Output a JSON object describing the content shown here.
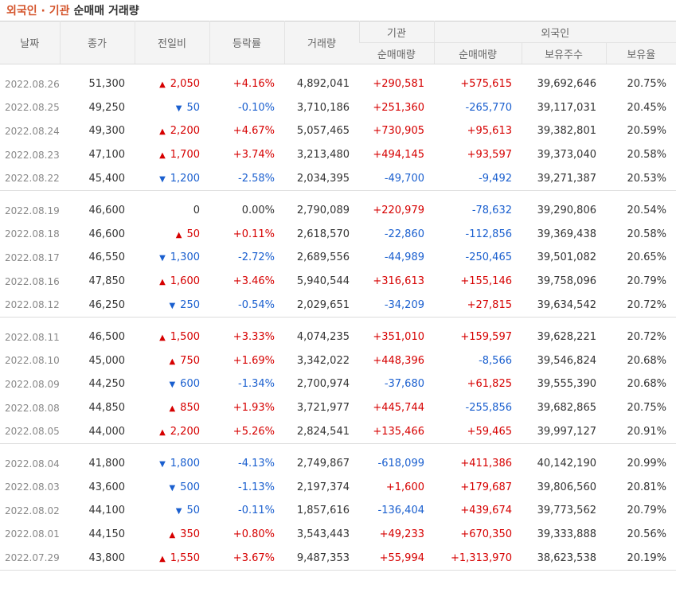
{
  "header": {
    "title_accent": "외국인 · 기관",
    "title_rest": "순매매 거래량"
  },
  "columns": {
    "date": "날짜",
    "close": "종가",
    "change": "전일비",
    "rate": "등락률",
    "volume": "거래량",
    "inst_group": "기관",
    "inst_net": "순매매량",
    "foreign_group": "외국인",
    "foreign_net": "순매매량",
    "foreign_holding": "보유주수",
    "foreign_ratio": "보유율"
  },
  "colors": {
    "up": "#d60000",
    "down": "#1a5fcf",
    "accent": "#d4532a"
  },
  "groups": [
    [
      {
        "date": "2022.08.26",
        "close": "51,300",
        "dir": "up",
        "change": "2,050",
        "rate": "+4.16%",
        "volume": "4,892,041",
        "inst": "+290,581",
        "foreign": "+575,615",
        "holding": "39,692,646",
        "ratio": "20.75%"
      },
      {
        "date": "2022.08.25",
        "close": "49,250",
        "dir": "down",
        "change": "50",
        "rate": "-0.10%",
        "volume": "3,710,186",
        "inst": "+251,360",
        "foreign": "-265,770",
        "holding": "39,117,031",
        "ratio": "20.45%"
      },
      {
        "date": "2022.08.24",
        "close": "49,300",
        "dir": "up",
        "change": "2,200",
        "rate": "+4.67%",
        "volume": "5,057,465",
        "inst": "+730,905",
        "foreign": "+95,613",
        "holding": "39,382,801",
        "ratio": "20.59%"
      },
      {
        "date": "2022.08.23",
        "close": "47,100",
        "dir": "up",
        "change": "1,700",
        "rate": "+3.74%",
        "volume": "3,213,480",
        "inst": "+494,145",
        "foreign": "+93,597",
        "holding": "39,373,040",
        "ratio": "20.58%"
      },
      {
        "date": "2022.08.22",
        "close": "45,400",
        "dir": "down",
        "change": "1,200",
        "rate": "-2.58%",
        "volume": "2,034,395",
        "inst": "-49,700",
        "foreign": "-9,492",
        "holding": "39,271,387",
        "ratio": "20.53%"
      }
    ],
    [
      {
        "date": "2022.08.19",
        "close": "46,600",
        "dir": "flat",
        "change": "0",
        "rate": "0.00%",
        "volume": "2,790,089",
        "inst": "+220,979",
        "foreign": "-78,632",
        "holding": "39,290,806",
        "ratio": "20.54%"
      },
      {
        "date": "2022.08.18",
        "close": "46,600",
        "dir": "up",
        "change": "50",
        "rate": "+0.11%",
        "volume": "2,618,570",
        "inst": "-22,860",
        "foreign": "-112,856",
        "holding": "39,369,438",
        "ratio": "20.58%"
      },
      {
        "date": "2022.08.17",
        "close": "46,550",
        "dir": "down",
        "change": "1,300",
        "rate": "-2.72%",
        "volume": "2,689,556",
        "inst": "-44,989",
        "foreign": "-250,465",
        "holding": "39,501,082",
        "ratio": "20.65%"
      },
      {
        "date": "2022.08.16",
        "close": "47,850",
        "dir": "up",
        "change": "1,600",
        "rate": "+3.46%",
        "volume": "5,940,544",
        "inst": "+316,613",
        "foreign": "+155,146",
        "holding": "39,758,096",
        "ratio": "20.79%"
      },
      {
        "date": "2022.08.12",
        "close": "46,250",
        "dir": "down",
        "change": "250",
        "rate": "-0.54%",
        "volume": "2,029,651",
        "inst": "-34,209",
        "foreign": "+27,815",
        "holding": "39,634,542",
        "ratio": "20.72%"
      }
    ],
    [
      {
        "date": "2022.08.11",
        "close": "46,500",
        "dir": "up",
        "change": "1,500",
        "rate": "+3.33%",
        "volume": "4,074,235",
        "inst": "+351,010",
        "foreign": "+159,597",
        "holding": "39,628,221",
        "ratio": "20.72%"
      },
      {
        "date": "2022.08.10",
        "close": "45,000",
        "dir": "up",
        "change": "750",
        "rate": "+1.69%",
        "volume": "3,342,022",
        "inst": "+448,396",
        "foreign": "-8,566",
        "holding": "39,546,824",
        "ratio": "20.68%"
      },
      {
        "date": "2022.08.09",
        "close": "44,250",
        "dir": "down",
        "change": "600",
        "rate": "-1.34%",
        "volume": "2,700,974",
        "inst": "-37,680",
        "foreign": "+61,825",
        "holding": "39,555,390",
        "ratio": "20.68%"
      },
      {
        "date": "2022.08.08",
        "close": "44,850",
        "dir": "up",
        "change": "850",
        "rate": "+1.93%",
        "volume": "3,721,977",
        "inst": "+445,744",
        "foreign": "-255,856",
        "holding": "39,682,865",
        "ratio": "20.75%"
      },
      {
        "date": "2022.08.05",
        "close": "44,000",
        "dir": "up",
        "change": "2,200",
        "rate": "+5.26%",
        "volume": "2,824,541",
        "inst": "+135,466",
        "foreign": "+59,465",
        "holding": "39,997,127",
        "ratio": "20.91%"
      }
    ],
    [
      {
        "date": "2022.08.04",
        "close": "41,800",
        "dir": "down",
        "change": "1,800",
        "rate": "-4.13%",
        "volume": "2,749,867",
        "inst": "-618,099",
        "foreign": "+411,386",
        "holding": "40,142,190",
        "ratio": "20.99%"
      },
      {
        "date": "2022.08.03",
        "close": "43,600",
        "dir": "down",
        "change": "500",
        "rate": "-1.13%",
        "volume": "2,197,374",
        "inst": "+1,600",
        "foreign": "+179,687",
        "holding": "39,806,560",
        "ratio": "20.81%"
      },
      {
        "date": "2022.08.02",
        "close": "44,100",
        "dir": "down",
        "change": "50",
        "rate": "-0.11%",
        "volume": "1,857,616",
        "inst": "-136,404",
        "foreign": "+439,674",
        "holding": "39,773,562",
        "ratio": "20.79%"
      },
      {
        "date": "2022.08.01",
        "close": "44,150",
        "dir": "up",
        "change": "350",
        "rate": "+0.80%",
        "volume": "3,543,443",
        "inst": "+49,233",
        "foreign": "+670,350",
        "holding": "39,333,888",
        "ratio": "20.56%"
      },
      {
        "date": "2022.07.29",
        "close": "43,800",
        "dir": "up",
        "change": "1,550",
        "rate": "+3.67%",
        "volume": "9,487,353",
        "inst": "+55,994",
        "foreign": "+1,313,970",
        "holding": "38,623,538",
        "ratio": "20.19%"
      }
    ]
  ]
}
